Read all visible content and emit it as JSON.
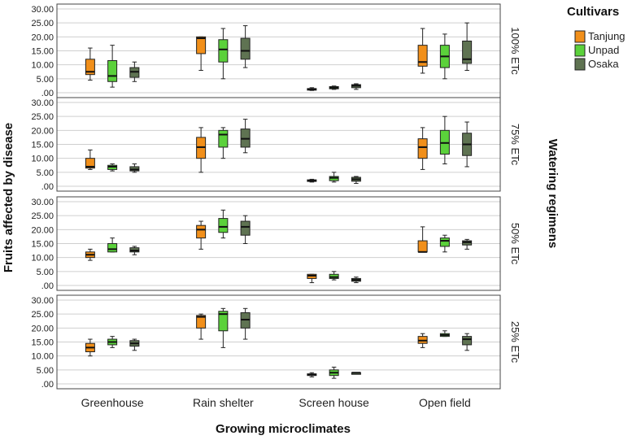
{
  "chart_data": {
    "type": "boxplot",
    "ylabel": "Fruits affected by disease",
    "xlabel": "Growing microclimates",
    "right_label": "Watering regimens",
    "legend_title": "Cultivars",
    "categories": [
      "Greenhouse",
      "Rain shelter",
      "Screen house",
      "Open field"
    ],
    "series": [
      {
        "name": "Tanjung",
        "color": "#F18F1A"
      },
      {
        "name": "Unpad",
        "color": "#5BD13B"
      },
      {
        "name": "Osaka",
        "color": "#5F7352"
      }
    ],
    "y_ticks": [
      ".00",
      "5.00",
      "10.00",
      "15.00",
      "20.00",
      "25.00",
      "30.00"
    ],
    "ylim": [
      0,
      30
    ],
    "panels": [
      {
        "label": "100% ETc",
        "boxes": [
          [
            [
              4.5,
              6.5,
              7.5,
              12.0,
              16.0
            ],
            [
              2.0,
              4.0,
              6.0,
              11.5,
              17.0
            ],
            [
              4.0,
              5.5,
              7.5,
              9.0,
              11.0
            ]
          ],
          [
            [
              8.0,
              14.0,
              19.5,
              20.0,
              20.0
            ],
            [
              5.0,
              11.0,
              15.5,
              19.0,
              23.0
            ],
            [
              9.0,
              12.0,
              15.0,
              19.5,
              24.0
            ]
          ],
          [
            [
              0.8,
              1.0,
              1.2,
              1.5,
              1.8
            ],
            [
              1.2,
              1.4,
              1.8,
              2.2,
              2.4
            ],
            [
              1.2,
              1.8,
              2.5,
              2.9,
              3.2
            ]
          ],
          [
            [
              7.0,
              9.5,
              11.0,
              17.0,
              23.0
            ],
            [
              5.0,
              9.0,
              13.0,
              17.0,
              21.0
            ],
            [
              8.0,
              10.5,
              12.0,
              18.5,
              25.0
            ]
          ]
        ]
      },
      {
        "label": "75% ETc",
        "boxes": [
          [
            [
              6.0,
              6.5,
              7.0,
              10.0,
              13.0
            ],
            [
              5.5,
              6.0,
              7.0,
              7.5,
              8.0
            ],
            [
              5.0,
              5.5,
              6.0,
              7.0,
              8.0
            ]
          ],
          [
            [
              5.0,
              10.0,
              14.0,
              17.5,
              21.0
            ],
            [
              10.0,
              14.0,
              18.5,
              20.0,
              21.0
            ],
            [
              12.0,
              14.0,
              17.0,
              20.5,
              24.0
            ]
          ],
          [
            [
              1.5,
              1.8,
              2.0,
              2.3,
              2.5
            ],
            [
              1.5,
              2.0,
              3.0,
              3.5,
              5.0
            ],
            [
              1.0,
              1.8,
              2.5,
              3.2,
              3.5
            ]
          ],
          [
            [
              6.0,
              10.0,
              14.0,
              17.0,
              21.0
            ],
            [
              8.0,
              11.5,
              15.5,
              20.0,
              25.0
            ],
            [
              7.0,
              11.0,
              15.0,
              19.0,
              23.0
            ]
          ]
        ]
      },
      {
        "label": "50% ETc",
        "boxes": [
          [
            [
              9.0,
              10.0,
              11.0,
              12.0,
              13.0
            ],
            [
              12.0,
              12.0,
              13.0,
              15.0,
              17.0
            ],
            [
              11.0,
              12.0,
              12.5,
              13.5,
              14.0
            ]
          ],
          [
            [
              13.0,
              17.0,
              20.0,
              21.5,
              23.0
            ],
            [
              17.0,
              19.0,
              21.0,
              24.0,
              27.0
            ],
            [
              15.0,
              18.0,
              21.0,
              23.0,
              25.0
            ]
          ],
          [
            [
              1.0,
              2.5,
              3.5,
              4.0,
              4.0
            ],
            [
              2.0,
              2.5,
              3.0,
              4.0,
              5.0
            ],
            [
              1.0,
              1.5,
              2.0,
              2.5,
              3.0
            ]
          ],
          [
            [
              12.0,
              12.0,
              12.0,
              16.0,
              21.0
            ],
            [
              12.0,
              14.0,
              16.0,
              17.0,
              18.0
            ],
            [
              13.0,
              14.5,
              15.5,
              16.0,
              16.5
            ]
          ]
        ]
      },
      {
        "label": "25% ETc",
        "boxes": [
          [
            [
              10.0,
              11.5,
              13.0,
              14.5,
              16.0
            ],
            [
              13.0,
              14.0,
              15.0,
              16.0,
              17.0
            ],
            [
              12.0,
              13.5,
              14.5,
              15.5,
              16.0
            ]
          ],
          [
            [
              16.0,
              20.0,
              24.0,
              24.5,
              25.0
            ],
            [
              13.0,
              19.0,
              25.0,
              26.0,
              27.0
            ],
            [
              16.0,
              20.0,
              23.0,
              25.5,
              27.0
            ]
          ],
          [
            [
              2.5,
              3.0,
              3.3,
              3.6,
              4.0
            ],
            [
              2.0,
              3.0,
              4.0,
              5.0,
              6.0
            ],
            [
              4.0,
              4.0,
              4.0,
              4.0,
              4.0
            ]
          ],
          [
            [
              13.0,
              14.5,
              15.5,
              17.0,
              18.0
            ],
            [
              17.0,
              17.0,
              17.5,
              18.0,
              19.0
            ],
            [
              12.0,
              14.0,
              16.0,
              17.0,
              18.0
            ]
          ]
        ]
      }
    ]
  }
}
